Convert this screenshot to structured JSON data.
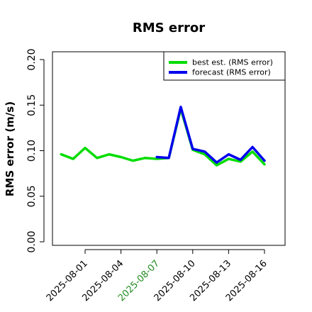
{
  "chart_data": {
    "type": "line",
    "title": "RMS error",
    "ylabel": "RMS error (m/s)",
    "xlabel": "",
    "ylim": [
      0.0,
      0.21
    ],
    "yticks": [
      0.0,
      0.05,
      0.1,
      0.15,
      0.2
    ],
    "ytick_labels": [
      "0.00",
      "0.05",
      "0.10",
      "0.15",
      "0.20"
    ],
    "x_tick_dates": [
      "2025-08-01",
      "2025-08-04",
      "2025-08-07",
      "2025-08-10",
      "2025-08-13",
      "2025-08-16"
    ],
    "x_tick_labels": [
      "2025-08-01",
      "2025-08-04",
      "2025-08-07",
      "2025-08-10",
      "2025-08-13",
      "2025-08-16"
    ],
    "highlighted_tick": "2025-08-07",
    "highlight_color": "#228B22",
    "grid": false,
    "legend_position": "top-right",
    "series": [
      {
        "name": "best est. (RMS error)",
        "color": "#00dd00",
        "x": [
          "2025-07-30",
          "2025-07-31",
          "2025-08-01",
          "2025-08-02",
          "2025-08-03",
          "2025-08-04",
          "2025-08-05",
          "2025-08-06",
          "2025-08-07",
          "2025-08-08",
          "2025-08-09",
          "2025-08-10",
          "2025-08-11",
          "2025-08-12",
          "2025-08-13",
          "2025-08-14",
          "2025-08-15",
          "2025-08-16"
        ],
        "values": [
          0.096,
          0.091,
          0.103,
          0.092,
          0.096,
          0.093,
          0.089,
          0.092,
          0.091,
          0.092,
          0.146,
          0.101,
          0.096,
          0.084,
          0.091,
          0.088,
          0.099,
          0.085
        ]
      },
      {
        "name": "forecast (RMS error)",
        "color": "#0000ee",
        "x": [
          "2025-08-07",
          "2025-08-08",
          "2025-08-09",
          "2025-08-10",
          "2025-08-11",
          "2025-08-12",
          "2025-08-13",
          "2025-08-14",
          "2025-08-15",
          "2025-08-16"
        ],
        "values": [
          0.093,
          0.092,
          0.148,
          0.102,
          0.099,
          0.087,
          0.096,
          0.09,
          0.104,
          0.089
        ]
      }
    ]
  }
}
